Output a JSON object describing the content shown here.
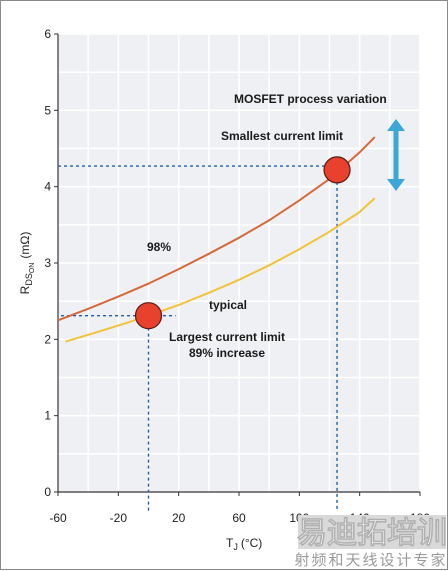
{
  "chart_data": {
    "type": "line",
    "xlabel": "T",
    "xlabel_sub": "J",
    "xlabel_unit": "(°C)",
    "ylabel": "R",
    "ylabel_sub1": "DS",
    "ylabel_sub2": "ON",
    "ylabel_unit": "(mΩ)",
    "xlim": [
      -60,
      180
    ],
    "ylim": [
      0,
      6
    ],
    "xticks": [
      -60,
      -20,
      20,
      60,
      100,
      140,
      180
    ],
    "yticks": [
      0,
      1,
      2,
      3,
      4,
      5,
      6
    ],
    "grid": true,
    "series": [
      {
        "name": "Smallest current limit",
        "color": "#d4693a",
        "x": [
          -60,
          -40,
          -20,
          0,
          20,
          40,
          60,
          80,
          100,
          120,
          140,
          150
        ],
        "y": [
          2.25,
          2.4,
          2.56,
          2.73,
          2.92,
          3.12,
          3.33,
          3.56,
          3.82,
          4.1,
          4.45,
          4.65
        ]
      },
      {
        "name": "typical",
        "color": "#f2c23a",
        "x": [
          -55,
          -40,
          -20,
          0,
          20,
          40,
          60,
          80,
          100,
          120,
          140,
          150
        ],
        "y": [
          1.97,
          2.06,
          2.18,
          2.31,
          2.45,
          2.61,
          2.78,
          2.97,
          3.18,
          3.41,
          3.67,
          3.85
        ]
      }
    ],
    "markers": [
      {
        "x": 0,
        "y": 2.31,
        "color": "#e8412e"
      },
      {
        "x": 125,
        "y": 4.22,
        "color": "#e8412e"
      }
    ],
    "annotations": [
      {
        "id": "process",
        "text": "MOSFET process variation"
      },
      {
        "id": "smallest",
        "text": "Smallest current limit"
      },
      {
        "id": "pct98",
        "text": "98%"
      },
      {
        "id": "typical",
        "text": "typical"
      },
      {
        "id": "largest",
        "text": "Largest current limit"
      },
      {
        "id": "increase",
        "text": "89% increase"
      }
    ],
    "arrow_color": "#3aa7d8",
    "guide_color": "#1f5fa8"
  },
  "watermark": {
    "main": "易迪拓培训",
    "sub": "射频和天线设计专家",
    "main_bg": "#d9d9d9"
  }
}
